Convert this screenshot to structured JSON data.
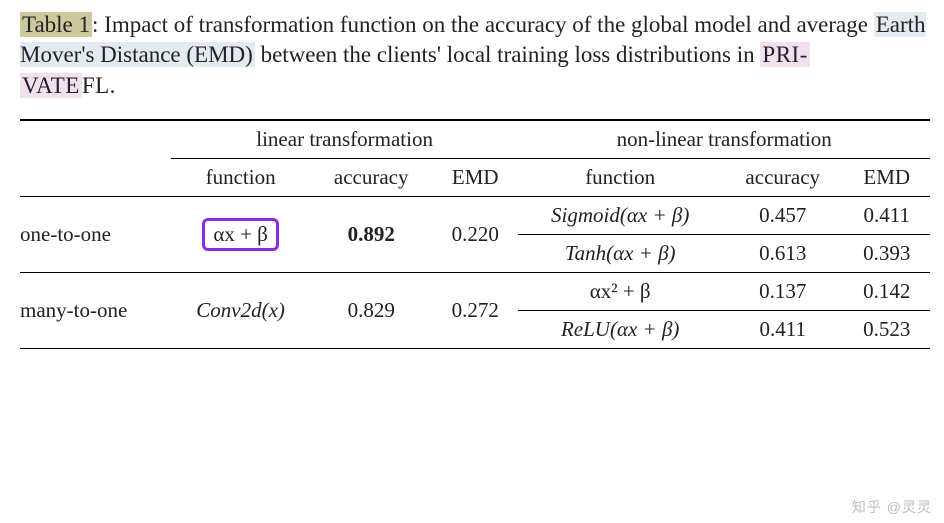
{
  "caption": {
    "table_label": "Table 1",
    "sep": ": ",
    "text_a": "Impact of transformation function on the accuracy of the global model and average ",
    "emd": "Earth Mover's Distance (EMD)",
    "text_b": " between the clients' local training loss distributions in ",
    "priv_a": "PRI-",
    "priv_b": "VATE",
    "priv_c": "FL",
    "period": "."
  },
  "table": {
    "headers": {
      "linear": "linear transformation",
      "nonlinear": "non-linear transformation",
      "function": "function",
      "accuracy": "accuracy",
      "emd": "EMD"
    },
    "rows": {
      "one_to_one": {
        "label": "one-to-one",
        "linear": {
          "function": "αx + β",
          "accuracy": "0.892",
          "emd": "0.220"
        },
        "nonlinear_a": {
          "function": "Sigmoid(αx + β)",
          "accuracy": "0.457",
          "emd": "0.411"
        },
        "nonlinear_b": {
          "function": "Tanh(αx + β)",
          "accuracy": "0.613",
          "emd": "0.393"
        }
      },
      "many_to_one": {
        "label": "many-to-one",
        "linear": {
          "function": "Conv2d(x)",
          "accuracy": "0.829",
          "emd": "0.272"
        },
        "nonlinear_a": {
          "function": "αx² + β",
          "accuracy": "0.137",
          "emd": "0.142"
        },
        "nonlinear_b": {
          "function": "ReLU(αx + β)",
          "accuracy": "0.411",
          "emd": "0.523"
        }
      }
    },
    "style": {
      "rule_color": "#000000",
      "highlight_border": "#8a2be2",
      "font_size": 21
    }
  },
  "watermark": "知乎 @灵灵"
}
